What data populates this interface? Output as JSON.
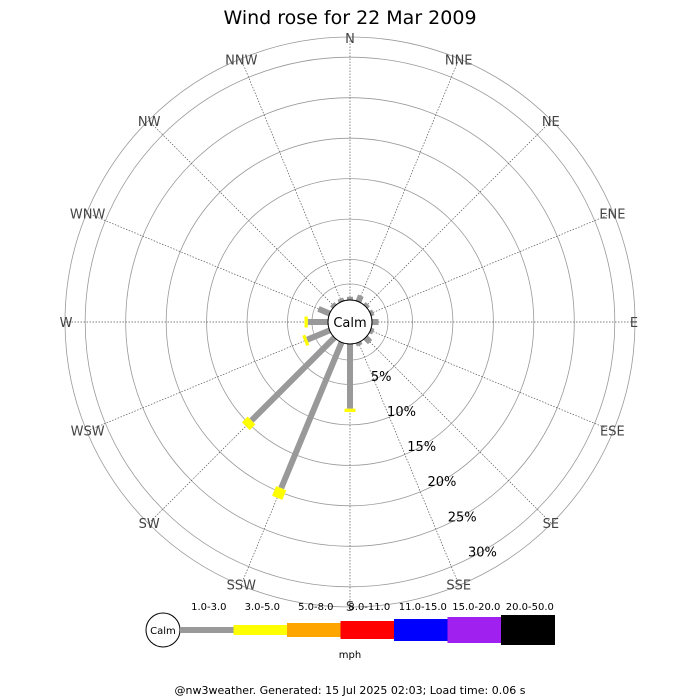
{
  "chart_data": {
    "type": "wind-rose",
    "title": "Wind rose for 22 Mar 2009",
    "calm_label": "Calm",
    "directions": [
      "N",
      "NNE",
      "NE",
      "ENE",
      "E",
      "ESE",
      "SE",
      "SSE",
      "S",
      "SSW",
      "SW",
      "WSW",
      "W",
      "WNW",
      "NW",
      "NNW"
    ],
    "rings_percent": [
      5,
      10,
      15,
      20,
      25,
      30
    ],
    "ring_labels": [
      "5%",
      "10%",
      "15%",
      "20%",
      "25%",
      "30%"
    ],
    "max_percent": 32.5,
    "speed_bins": [
      {
        "label": "1.0-3.0",
        "color": "#999999"
      },
      {
        "label": "3.0-5.0",
        "color": "#ffff00"
      },
      {
        "label": "5.0-8.0",
        "color": "#ffa500"
      },
      {
        "label": "8.0-11.0",
        "color": "#ff0000"
      },
      {
        "label": "11.0-15.0",
        "color": "#0000ff"
      },
      {
        "label": "15.0-20.0",
        "color": "#a020f0"
      },
      {
        "label": "20.0-50.0",
        "color": "#000000"
      }
    ],
    "unit": "mph",
    "values_percent": {
      "N": [
        0.4,
        0
      ],
      "NNE": [
        0.8,
        0
      ],
      "NE": [
        0.4,
        0
      ],
      "ENE": [
        0.4,
        0
      ],
      "E": [
        0.8,
        0
      ],
      "ESE": [
        0.4,
        0
      ],
      "SE": [
        0.8,
        0
      ],
      "SSE": [
        0.4,
        0
      ],
      "S": [
        8.0,
        0.4
      ],
      "SSW": [
        19.5,
        1.3
      ],
      "SW": [
        14.5,
        1.0
      ],
      "WSW": [
        3.0,
        0.4
      ],
      "W": [
        2.5,
        0.4
      ],
      "WNW": [
        1.5,
        0
      ],
      "NW": [
        0.4,
        0
      ],
      "NNW": [
        0.4,
        0
      ]
    },
    "grid": true,
    "legend_placement": "bottom"
  },
  "footer": "@nw3weather. Generated: 15 Jul 2025 02:03; Load time: 0.06 s"
}
